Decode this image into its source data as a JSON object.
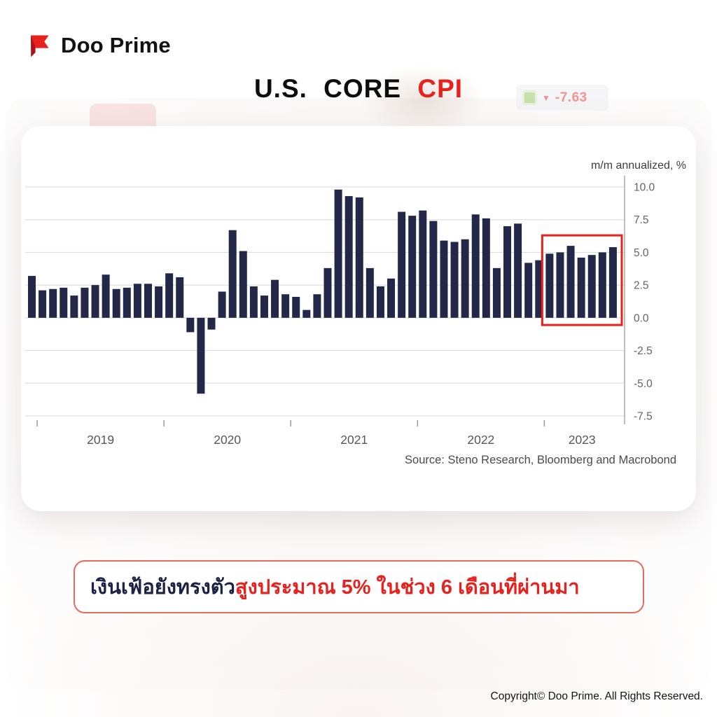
{
  "header": {
    "logo_text": "Doo Prime",
    "title_main": "U.S. CORE",
    "title_accent": "CPI"
  },
  "background_ticker": {
    "direction": "down",
    "arrow": "▼",
    "value": "-7.63"
  },
  "chart_data": {
    "type": "bar",
    "title": "U.S. CORE CPI",
    "ylabel": "m/m annualized, %",
    "xlabel": "",
    "ylim": [
      -7.5,
      10.0
    ],
    "grid": true,
    "yticks": [
      10.0,
      7.5,
      5.0,
      2.5,
      0.0,
      -2.5,
      -5.0,
      -7.5
    ],
    "ytick_labels": [
      "10.0",
      "7.5",
      "5.0",
      "2.5",
      "0.0",
      "-2.5",
      "-5.0",
      "-7.5"
    ],
    "x_year_labels": [
      "2019",
      "2020",
      "2021",
      "2022",
      "2023"
    ],
    "year_start_indices": [
      1,
      13,
      25,
      37,
      49
    ],
    "values": [
      3.2,
      2.1,
      2.2,
      2.3,
      1.7,
      2.3,
      2.5,
      3.3,
      2.2,
      2.3,
      2.6,
      2.6,
      2.4,
      3.4,
      3.1,
      -1.1,
      -5.8,
      -0.9,
      2.0,
      6.7,
      5.1,
      2.4,
      1.7,
      2.9,
      1.8,
      1.6,
      0.6,
      1.8,
      3.8,
      9.8,
      9.3,
      9.2,
      3.8,
      2.4,
      3.0,
      8.1,
      7.8,
      8.2,
      7.4,
      5.9,
      5.8,
      6.0,
      7.9,
      7.6,
      3.8,
      7.0,
      7.2,
      4.2,
      4.4,
      4.9,
      5.0,
      5.5,
      4.6,
      4.8,
      5.0,
      5.4
    ],
    "bar_color": "#232849",
    "grid_color": "#d8d8d8",
    "axis_color": "#a8a8a8",
    "highlight_box": {
      "start_index": 49,
      "end_index": 55,
      "top_value": 6.3,
      "bottom_value": -0.55,
      "color": "#e8211d",
      "meaning": "last ~6 months around 5%"
    },
    "source": "Source: Steno Research, Bloomberg and Macrobond",
    "legend_position": "none"
  },
  "caption": {
    "text_dark": "เงินเฟ้อยังทรงตัว",
    "text_red": "สูงประมาณ 5% ในช่วง 6 เดือนที่ผ่านมา"
  },
  "footer": {
    "copyright": "Copyright© Doo Prime. All Rights Reserved."
  }
}
